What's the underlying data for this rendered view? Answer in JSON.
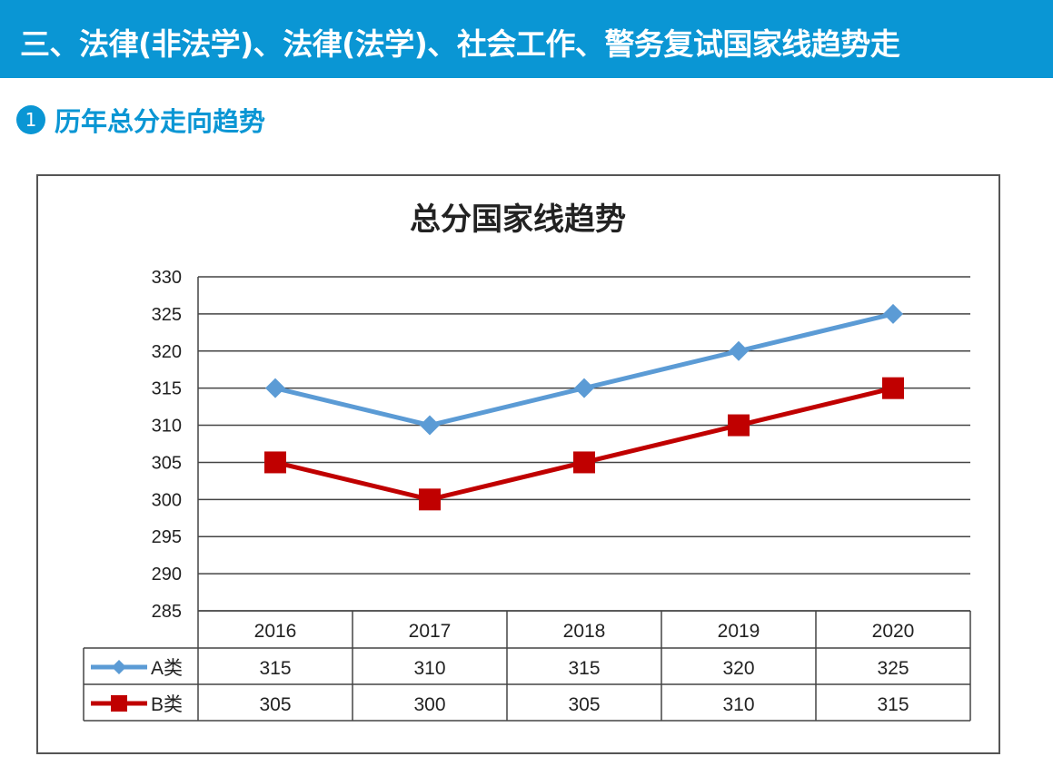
{
  "header": {
    "title": "三、法律(非法学)、法律(法学)、社会工作、警务复试国家线趋势走"
  },
  "section": {
    "number": "1",
    "title": "历年总分走向趋势"
  },
  "chart_data": {
    "type": "line",
    "title": "总分国家线趋势",
    "categories": [
      "2016",
      "2017",
      "2018",
      "2019",
      "2020"
    ],
    "ylim": [
      285,
      330
    ],
    "yticks": [
      285,
      290,
      295,
      300,
      305,
      310,
      315,
      320,
      325,
      330
    ],
    "grid": true,
    "legend": "data-table-left",
    "series": [
      {
        "name": "A类",
        "values": [
          315,
          310,
          315,
          320,
          325
        ],
        "color": "#5b9bd5",
        "marker": "diamond"
      },
      {
        "name": "B类",
        "values": [
          305,
          300,
          305,
          310,
          315
        ],
        "color": "#c00000",
        "marker": "square"
      }
    ]
  }
}
